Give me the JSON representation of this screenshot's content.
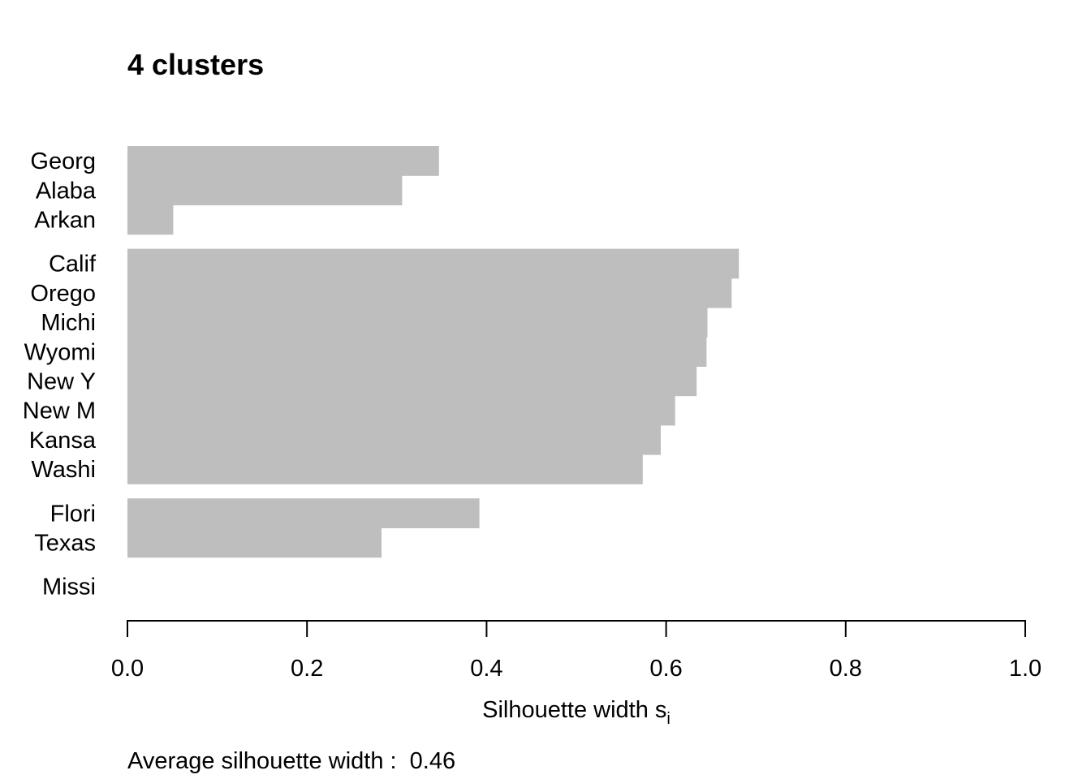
{
  "chart_data": {
    "type": "bar",
    "orientation": "horizontal",
    "title": "4 clusters",
    "xlabel": "Silhouette width s",
    "xlabel_subscript": "i",
    "ylabel": "",
    "xlim": [
      0,
      1
    ],
    "xticks": [
      "0.0",
      "0.2",
      "0.4",
      "0.6",
      "0.8",
      "1.0"
    ],
    "bar_color": "#bebebe",
    "grid": false,
    "legend": null,
    "footer": "Average silhouette width :  0.46",
    "clusters": [
      {
        "items": [
          {
            "label": "Georg",
            "value": 0.347
          },
          {
            "label": "Alaba",
            "value": 0.306
          },
          {
            "label": "Arkan",
            "value": 0.051
          }
        ]
      },
      {
        "items": [
          {
            "label": "Calif",
            "value": 0.681
          },
          {
            "label": "Orego",
            "value": 0.673
          },
          {
            "label": "Michi",
            "value": 0.646
          },
          {
            "label": "Wyomi",
            "value": 0.645
          },
          {
            "label": "New Y",
            "value": 0.634
          },
          {
            "label": "New M",
            "value": 0.61
          },
          {
            "label": "Kansa",
            "value": 0.594
          },
          {
            "label": "Washi",
            "value": 0.574
          }
        ]
      },
      {
        "items": [
          {
            "label": "Flori",
            "value": 0.392
          },
          {
            "label": "Texas",
            "value": 0.283
          }
        ]
      },
      {
        "items": [
          {
            "label": "Missi",
            "value": 0.0
          }
        ]
      }
    ]
  }
}
